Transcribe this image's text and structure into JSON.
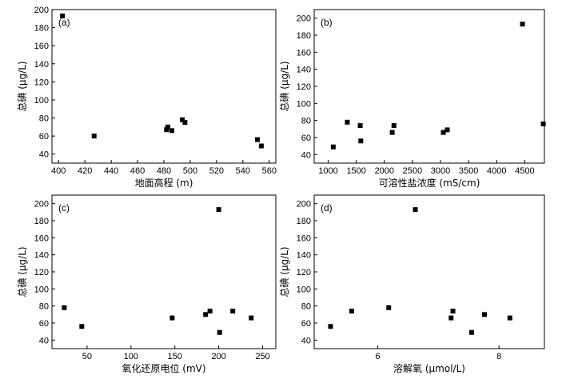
{
  "chart_data": [
    {
      "type": "scatter",
      "panel": "(a)",
      "xlabel": "地面高程 (m)",
      "ylabel": "总碘 (μg/L)",
      "xlim": [
        395,
        565
      ],
      "ylim": [
        30,
        200
      ],
      "xticks": [
        400,
        420,
        440,
        460,
        480,
        500,
        520,
        540,
        560
      ],
      "yticks": [
        40,
        60,
        80,
        100,
        120,
        140,
        160,
        180,
        200
      ],
      "points": [
        {
          "x": 403,
          "y": 193
        },
        {
          "x": 427,
          "y": 60
        },
        {
          "x": 482,
          "y": 67
        },
        {
          "x": 483,
          "y": 70
        },
        {
          "x": 486,
          "y": 66
        },
        {
          "x": 494,
          "y": 78
        },
        {
          "x": 496,
          "y": 75
        },
        {
          "x": 551,
          "y": 56
        },
        {
          "x": 554,
          "y": 49
        }
      ]
    },
    {
      "type": "scatter",
      "panel": "(b)",
      "xlabel": "可溶性盐浓度 (mS/cm)",
      "ylabel": "总碘 (μg/L)",
      "xlim": [
        750,
        4850
      ],
      "ylim": [
        30,
        210
      ],
      "xticks": [
        1000,
        1500,
        2000,
        2500,
        3000,
        3500,
        4000,
        4500
      ],
      "yticks": [
        40,
        60,
        80,
        100,
        120,
        140,
        160,
        180,
        200
      ],
      "points": [
        {
          "x": 1090,
          "y": 49
        },
        {
          "x": 1340,
          "y": 78
        },
        {
          "x": 1570,
          "y": 74
        },
        {
          "x": 1580,
          "y": 56
        },
        {
          "x": 2140,
          "y": 66
        },
        {
          "x": 2170,
          "y": 74
        },
        {
          "x": 3050,
          "y": 66
        },
        {
          "x": 3120,
          "y": 69
        },
        {
          "x": 4460,
          "y": 193
        },
        {
          "x": 4830,
          "y": 76
        }
      ]
    },
    {
      "type": "scatter",
      "panel": "(c)",
      "xlabel": "氧化还原电位 (mV)",
      "ylabel": "总碘 (μg/L)",
      "xlim": [
        10,
        265
      ],
      "ylim": [
        30,
        210
      ],
      "xticks": [
        50,
        100,
        150,
        200,
        250
      ],
      "yticks": [
        40,
        60,
        80,
        100,
        120,
        140,
        160,
        180,
        200
      ],
      "points": [
        {
          "x": 24,
          "y": 78
        },
        {
          "x": 44,
          "y": 56
        },
        {
          "x": 147,
          "y": 66
        },
        {
          "x": 185,
          "y": 70
        },
        {
          "x": 190,
          "y": 74
        },
        {
          "x": 200,
          "y": 193
        },
        {
          "x": 201,
          "y": 49
        },
        {
          "x": 216,
          "y": 74
        },
        {
          "x": 237,
          "y": 66
        }
      ]
    },
    {
      "type": "scatter",
      "panel": "(d)",
      "xlabel": "溶解氧 (μmol/L)",
      "ylabel": "总碘 (μg/L)",
      "xlim": [
        4.95,
        8.75
      ],
      "ylim": [
        30,
        210
      ],
      "xticks": [
        6,
        8
      ],
      "yticks": [
        40,
        60,
        80,
        100,
        120,
        140,
        160,
        180,
        200
      ],
      "points": [
        {
          "x": 5.22,
          "y": 56
        },
        {
          "x": 5.57,
          "y": 74
        },
        {
          "x": 6.18,
          "y": 78
        },
        {
          "x": 6.62,
          "y": 193
        },
        {
          "x": 7.21,
          "y": 66
        },
        {
          "x": 7.24,
          "y": 74
        },
        {
          "x": 7.55,
          "y": 49
        },
        {
          "x": 7.76,
          "y": 70
        },
        {
          "x": 8.18,
          "y": 66
        }
      ]
    }
  ]
}
